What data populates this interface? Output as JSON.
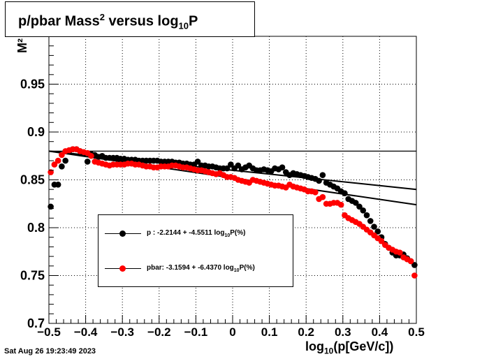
{
  "chart_data": {
    "type": "scatter",
    "title": "p/pbar Mass² versus log₁₀P",
    "title_parts": {
      "a": "p/pbar Mass",
      "b": "2",
      "c": " versus log",
      "d": "10",
      "e": "P"
    },
    "xlabel_parts": {
      "a": "log",
      "b": "10",
      "c": "(p[GeV/c])"
    },
    "ylabel": "M²",
    "xlim": [
      -0.5,
      0.5
    ],
    "ylim": [
      0.7,
      1.0
    ],
    "grid": true,
    "x_ticks": [
      "−0.5",
      "−0.4",
      "−0.3",
      "−0.2",
      "−0.1",
      "0",
      "0.1",
      "0.2",
      "0.3",
      "0.4",
      "0.5"
    ],
    "y_ticks": [
      "0.7",
      "0.75",
      "0.8",
      "0.85",
      "0.9",
      "0.95"
    ],
    "reference_line_y": 0.88,
    "legend_position": "lower-left",
    "series": [
      {
        "name": "p",
        "color": "#000000",
        "legend_parts": {
          "a": "p  : -2.2144 + -4.5511 log",
          "b": "10",
          "c": "P(%)"
        },
        "fit": {
          "x": [
            -0.5,
            0.5
          ],
          "y": [
            0.88,
            0.84
          ]
        },
        "x": [
          -0.495,
          -0.485,
          -0.475,
          -0.465,
          -0.455,
          -0.445,
          -0.435,
          -0.425,
          -0.415,
          -0.405,
          -0.395,
          -0.385,
          -0.375,
          -0.365,
          -0.355,
          -0.345,
          -0.335,
          -0.325,
          -0.315,
          -0.305,
          -0.295,
          -0.285,
          -0.275,
          -0.265,
          -0.255,
          -0.245,
          -0.235,
          -0.225,
          -0.215,
          -0.205,
          -0.195,
          -0.185,
          -0.175,
          -0.165,
          -0.155,
          -0.145,
          -0.135,
          -0.125,
          -0.115,
          -0.105,
          -0.095,
          -0.085,
          -0.075,
          -0.065,
          -0.055,
          -0.045,
          -0.035,
          -0.025,
          -0.015,
          -0.005,
          0.005,
          0.015,
          0.025,
          0.035,
          0.045,
          0.055,
          0.065,
          0.075,
          0.085,
          0.095,
          0.105,
          0.115,
          0.125,
          0.135,
          0.145,
          0.155,
          0.165,
          0.175,
          0.185,
          0.195,
          0.205,
          0.215,
          0.225,
          0.235,
          0.245,
          0.255,
          0.265,
          0.275,
          0.285,
          0.295,
          0.305,
          0.315,
          0.325,
          0.335,
          0.345,
          0.355,
          0.365,
          0.375,
          0.385,
          0.395,
          0.405,
          0.415,
          0.425,
          0.435,
          0.445,
          0.455,
          0.465,
          0.475,
          0.485,
          0.495
        ],
        "y": [
          0.822,
          0.845,
          0.845,
          0.864,
          0.87,
          0.88,
          0.882,
          0.882,
          0.88,
          0.878,
          0.869,
          0.877,
          0.876,
          0.874,
          0.875,
          0.873,
          0.873,
          0.873,
          0.873,
          0.872,
          0.872,
          0.871,
          0.871,
          0.871,
          0.87,
          0.87,
          0.87,
          0.87,
          0.87,
          0.87,
          0.869,
          0.869,
          0.869,
          0.869,
          0.868,
          0.868,
          0.867,
          0.867,
          0.866,
          0.866,
          0.869,
          0.865,
          0.865,
          0.864,
          0.864,
          0.863,
          0.862,
          0.862,
          0.862,
          0.866,
          0.862,
          0.865,
          0.861,
          0.863,
          0.865,
          0.862,
          0.86,
          0.86,
          0.861,
          0.86,
          0.859,
          0.862,
          0.861,
          0.863,
          0.858,
          0.855,
          0.857,
          0.856,
          0.855,
          0.854,
          0.853,
          0.852,
          0.851,
          0.849,
          0.855,
          0.847,
          0.845,
          0.843,
          0.841,
          0.838,
          0.836,
          0.83,
          0.828,
          0.826,
          0.822,
          0.818,
          0.813,
          0.807,
          0.801,
          0.796,
          0.79,
          0.783,
          0.779,
          0.774,
          0.771,
          0.771,
          0.772,
          0.768,
          0.765,
          0.761
        ]
      },
      {
        "name": "pbar",
        "color": "#ff0000",
        "legend_parts": {
          "a": "pbar: -3.1594 + -6.4370 log",
          "b": "10",
          "c": "P(%)"
        },
        "fit": {
          "x": [
            -0.5,
            0.5
          ],
          "y": [
            0.88,
            0.824
          ]
        },
        "x": [
          -0.495,
          -0.485,
          -0.475,
          -0.465,
          -0.455,
          -0.445,
          -0.435,
          -0.425,
          -0.415,
          -0.405,
          -0.395,
          -0.385,
          -0.375,
          -0.365,
          -0.355,
          -0.345,
          -0.335,
          -0.325,
          -0.315,
          -0.305,
          -0.295,
          -0.285,
          -0.275,
          -0.265,
          -0.255,
          -0.245,
          -0.235,
          -0.225,
          -0.215,
          -0.205,
          -0.195,
          -0.185,
          -0.175,
          -0.165,
          -0.155,
          -0.145,
          -0.135,
          -0.125,
          -0.115,
          -0.105,
          -0.095,
          -0.085,
          -0.075,
          -0.065,
          -0.055,
          -0.045,
          -0.035,
          -0.025,
          -0.015,
          -0.005,
          0.005,
          0.015,
          0.025,
          0.035,
          0.045,
          0.055,
          0.065,
          0.075,
          0.085,
          0.095,
          0.105,
          0.115,
          0.125,
          0.135,
          0.145,
          0.155,
          0.165,
          0.175,
          0.185,
          0.195,
          0.205,
          0.215,
          0.225,
          0.235,
          0.245,
          0.255,
          0.265,
          0.275,
          0.285,
          0.295,
          0.305,
          0.315,
          0.325,
          0.335,
          0.345,
          0.355,
          0.365,
          0.375,
          0.385,
          0.395,
          0.405,
          0.415,
          0.425,
          0.435,
          0.445,
          0.455,
          0.465,
          0.475,
          0.485,
          0.495
        ],
        "y": [
          0.858,
          0.866,
          0.87,
          0.876,
          0.88,
          0.881,
          0.882,
          0.882,
          0.88,
          0.879,
          0.878,
          0.875,
          0.869,
          0.868,
          0.867,
          0.866,
          0.865,
          0.866,
          0.866,
          0.866,
          0.866,
          0.867,
          0.867,
          0.866,
          0.866,
          0.865,
          0.864,
          0.864,
          0.863,
          0.863,
          0.864,
          0.864,
          0.864,
          0.865,
          0.865,
          0.864,
          0.863,
          0.863,
          0.862,
          0.861,
          0.86,
          0.86,
          0.859,
          0.858,
          0.857,
          0.856,
          0.857,
          0.855,
          0.853,
          0.853,
          0.852,
          0.85,
          0.849,
          0.848,
          0.847,
          0.85,
          0.849,
          0.848,
          0.847,
          0.846,
          0.845,
          0.844,
          0.844,
          0.843,
          0.842,
          0.845,
          0.843,
          0.842,
          0.841,
          0.84,
          0.838,
          0.838,
          0.837,
          0.83,
          0.832,
          0.825,
          0.825,
          0.826,
          0.826,
          0.824,
          0.813,
          0.81,
          0.808,
          0.806,
          0.804,
          0.801,
          0.798,
          0.795,
          0.792,
          0.789,
          0.786,
          0.782,
          0.779,
          0.777,
          0.775,
          0.774,
          0.769,
          0.767,
          0.765,
          0.75
        ]
      }
    ]
  },
  "timestamp": "Sat Aug 26 19:23:49 2023"
}
